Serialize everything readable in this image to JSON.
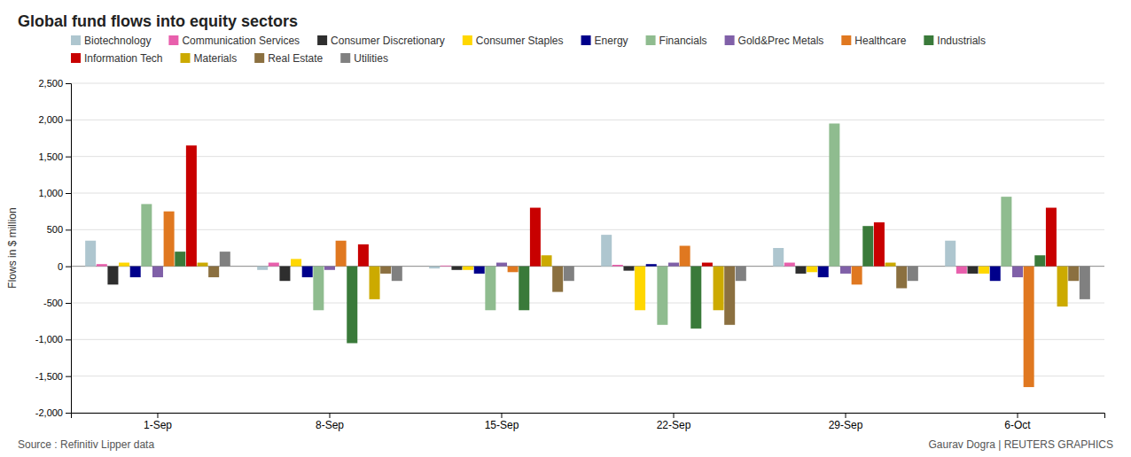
{
  "chart_data": {
    "type": "bar",
    "title": "Global fund flows into equity sectors",
    "ylabel": "Flows in $ million",
    "annotations": [
      "Source : Refinitiv Lipper data",
      "Gaurav Dogra | REUTERS GRAPHICS"
    ],
    "categories": [
      "1-Sep",
      "8-Sep",
      "15-Sep",
      "22-Sep",
      "29-Sep",
      "6-Oct"
    ],
    "series": [
      {
        "name": "Biotechnology",
        "color": "#aec6cf",
        "values": [
          350,
          -50,
          -30,
          430,
          250,
          350
        ]
      },
      {
        "name": "Communication Services",
        "color": "#e85fac",
        "values": [
          30,
          50,
          10,
          20,
          50,
          -100
        ]
      },
      {
        "name": "Consumer Discretionary",
        "color": "#2e2e2e",
        "values": [
          -250,
          -200,
          -50,
          -60,
          -100,
          -100
        ]
      },
      {
        "name": "Consumer Staples",
        "color": "#ffd700",
        "values": [
          50,
          100,
          -50,
          -600,
          -80,
          -100
        ]
      },
      {
        "name": "Energy",
        "color": "#00008b",
        "values": [
          -150,
          -150,
          -100,
          30,
          -150,
          -200
        ]
      },
      {
        "name": "Financials",
        "color": "#8fbc8f",
        "values": [
          850,
          -600,
          -600,
          -800,
          1950,
          950
        ]
      },
      {
        "name": "Gold&Prec Metals",
        "color": "#8060a8",
        "values": [
          -150,
          -50,
          50,
          50,
          -100,
          -150
        ]
      },
      {
        "name": "Healthcare",
        "color": "#e07820",
        "values": [
          750,
          350,
          -80,
          280,
          -250,
          -1650
        ]
      },
      {
        "name": "Industrials",
        "color": "#3a7a3a",
        "values": [
          200,
          -1050,
          -600,
          -850,
          550,
          150
        ]
      },
      {
        "name": "Information Tech",
        "color": "#c80000",
        "values": [
          1650,
          300,
          800,
          50,
          600,
          800
        ]
      },
      {
        "name": "Materials",
        "color": "#ccaa00",
        "values": [
          50,
          -450,
          150,
          -600,
          50,
          -550
        ]
      },
      {
        "name": "Real Estate",
        "color": "#8b7040",
        "values": [
          -150,
          -100,
          -350,
          -800,
          -300,
          -200
        ]
      },
      {
        "name": "Utilities",
        "color": "#808080",
        "values": [
          200,
          -200,
          -200,
          -200,
          -200,
          -450
        ]
      }
    ],
    "ylim": [
      -2000,
      2500
    ],
    "yticks": [
      {
        "value": -2000,
        "label": "-2,000"
      },
      {
        "value": -1500,
        "label": "-1,500"
      },
      {
        "value": -1000,
        "label": "-1,000"
      },
      -500,
      0,
      500,
      {
        "value": 1000,
        "label": "1,000"
      },
      {
        "value": 1500,
        "label": "1,500"
      },
      {
        "value": 2000,
        "label": "2,000"
      },
      {
        "value": 2500,
        "label": "2,500"
      }
    ],
    "grid": true,
    "legend": "top"
  }
}
